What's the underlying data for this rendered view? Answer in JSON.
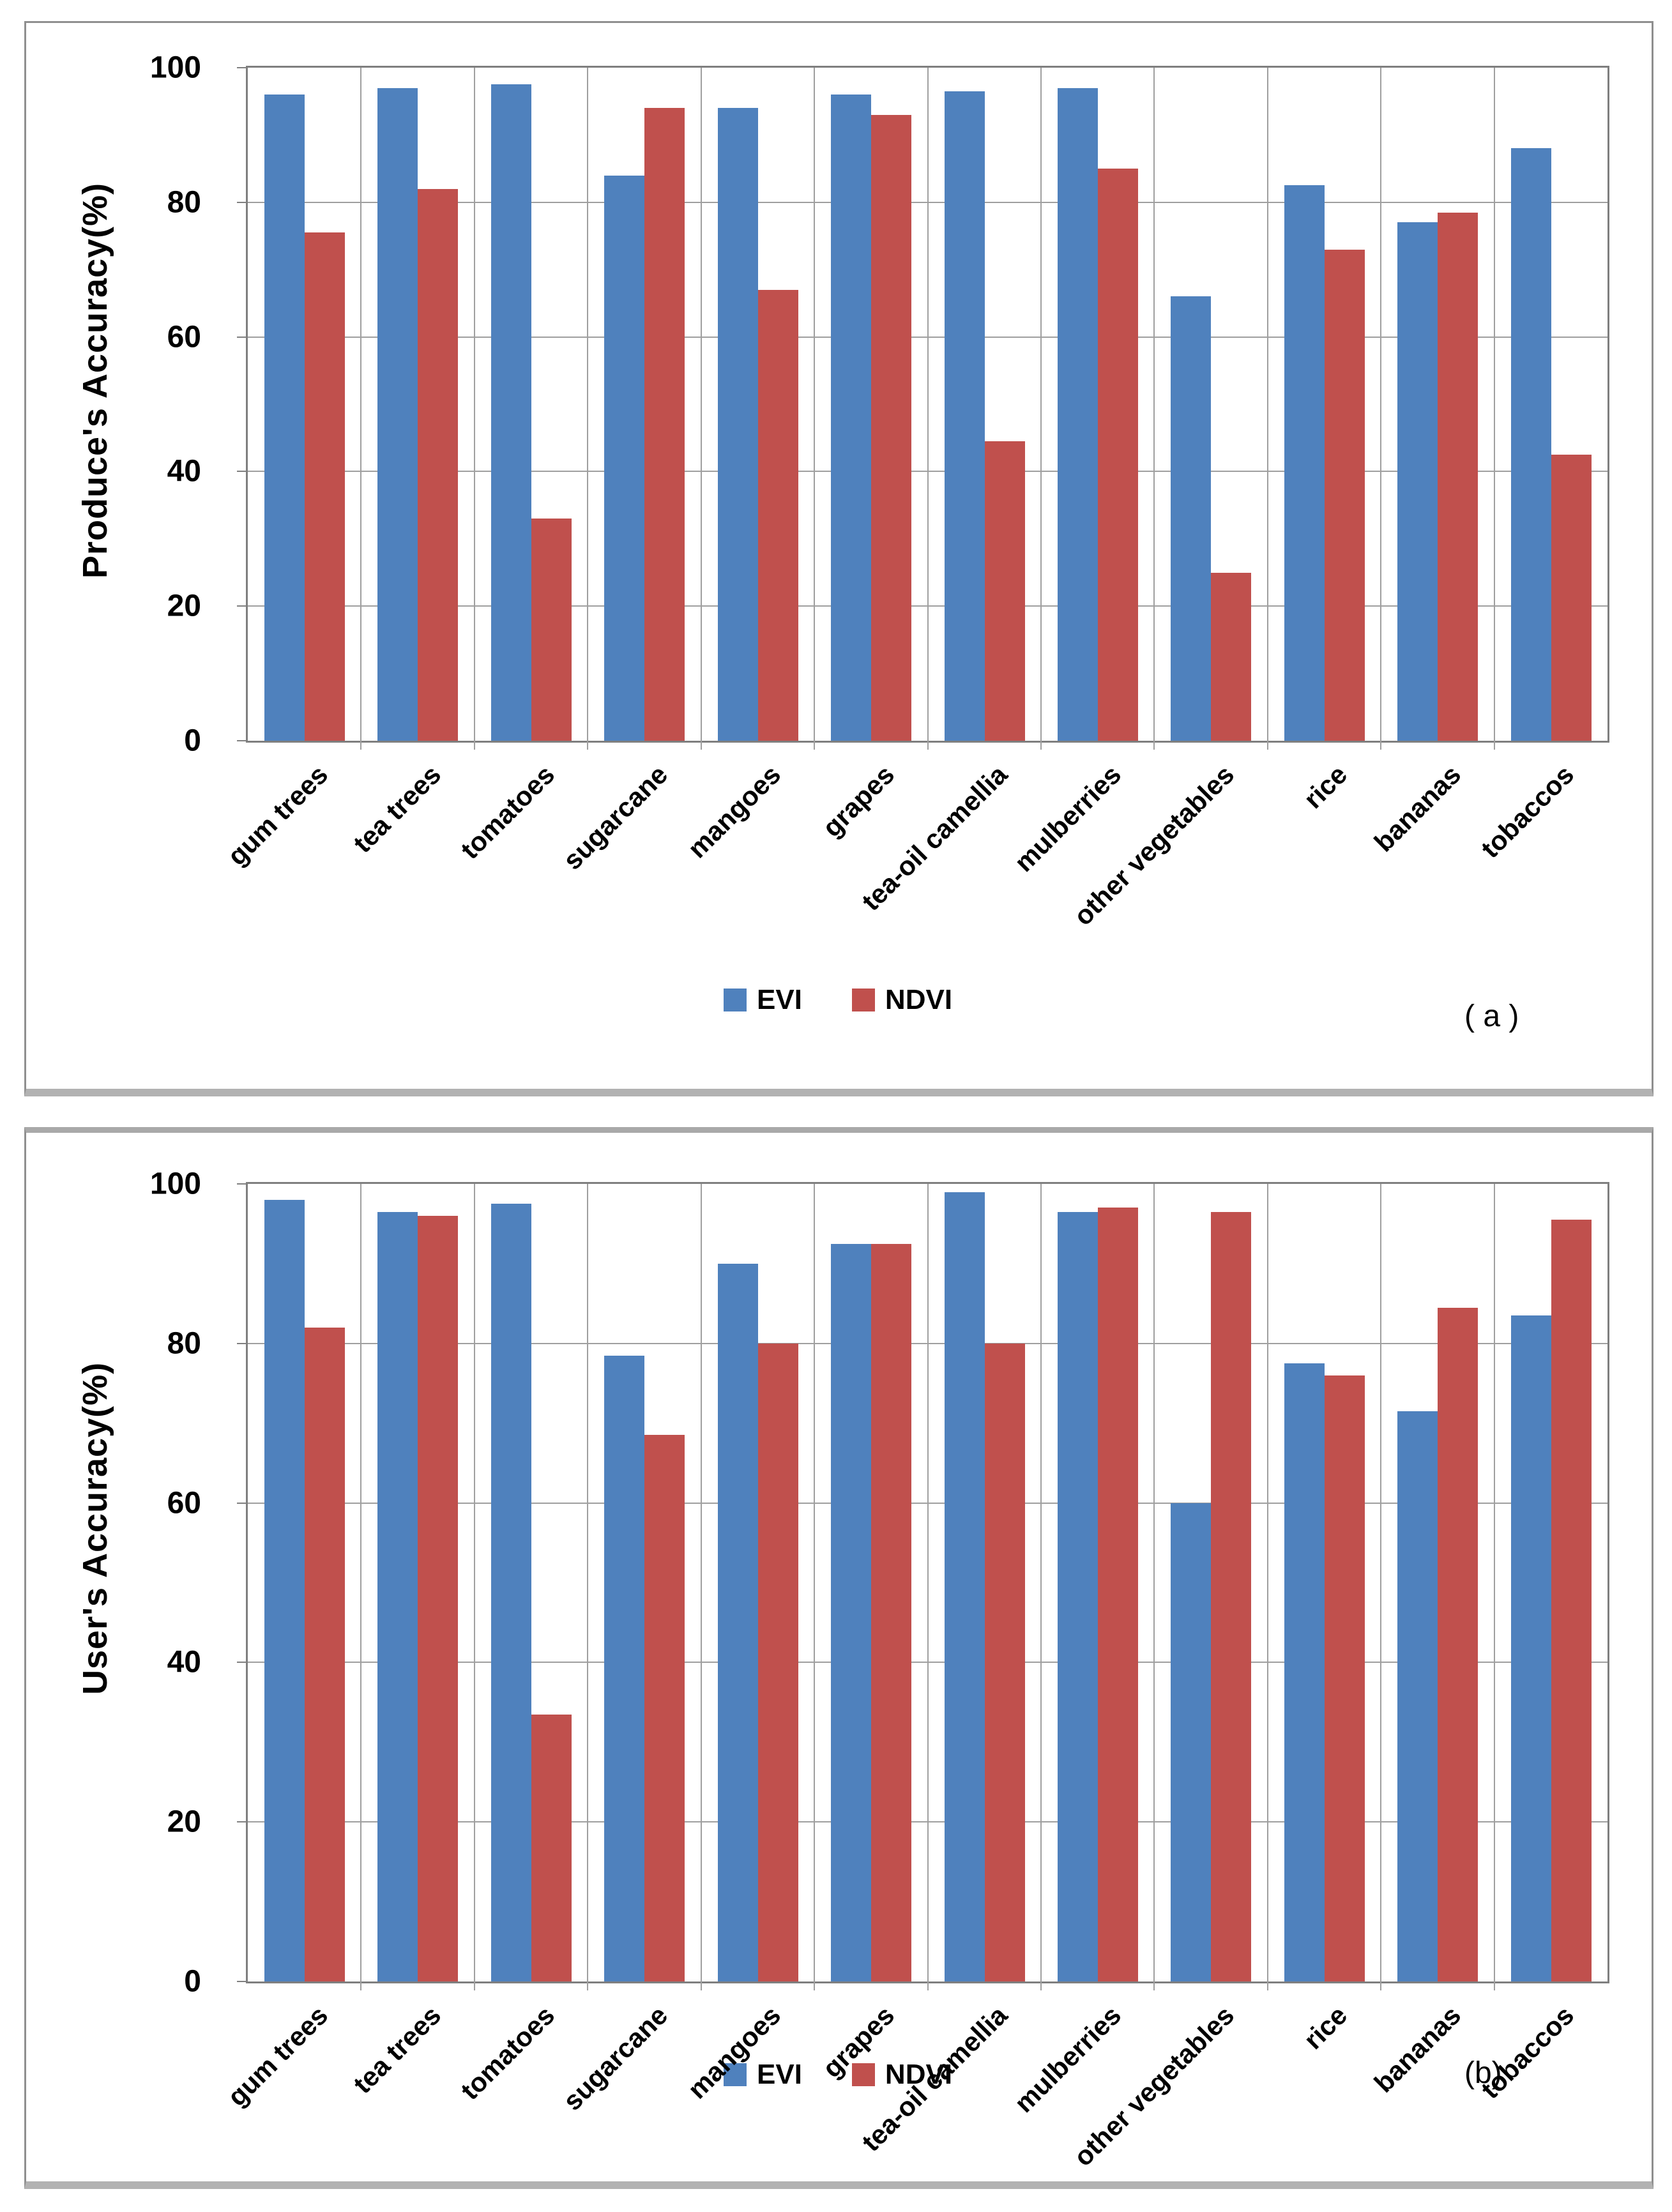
{
  "page": {
    "background": "#ffffff"
  },
  "colors": {
    "evi": "#4F81BD",
    "ndvi": "#C0504D",
    "gridline": "#9f9f9f",
    "plot_border": "#7f7f7f",
    "box_border": "#8f8f8f",
    "text": "#000000"
  },
  "legend": {
    "evi_label": "EVI",
    "ndvi_label": "NDVI"
  },
  "chart_data": [
    {
      "type": "bar",
      "title": "",
      "caption": "( a )",
      "xlabel": "",
      "ylabel": "Produce's Accuracy(%)",
      "ylim": [
        0,
        100
      ],
      "yticks": [
        0,
        20,
        40,
        60,
        80,
        100
      ],
      "grid": "horizontal and vertical gridlines on",
      "legend_position": "bottom-center",
      "categories": [
        "gum trees",
        "tea trees",
        "tomatoes",
        "sugarcane",
        "mangoes",
        "grapes",
        "tea-oil camellia",
        "mulberries",
        "other vegetables",
        "rice",
        "bananas",
        "tobaccos"
      ],
      "series": [
        {
          "name": "EVI",
          "color": "#4F81BD",
          "values": [
            96,
            97,
            97.5,
            84,
            94,
            96,
            96.5,
            97,
            66,
            82.5,
            77,
            88
          ]
        },
        {
          "name": "NDVI",
          "color": "#C0504D",
          "values": [
            75.5,
            82,
            33,
            94,
            67,
            93,
            44.5,
            85,
            25,
            73,
            78.5,
            42.5
          ]
        }
      ]
    },
    {
      "type": "bar",
      "title": "",
      "caption": "(b)",
      "xlabel": "",
      "ylabel": "User's Accuracy(%)",
      "ylim": [
        0,
        100
      ],
      "yticks": [
        0,
        20,
        40,
        60,
        80,
        100
      ],
      "grid": "horizontal and vertical gridlines on",
      "legend_position": "bottom-center",
      "categories": [
        "gum trees",
        "tea trees",
        "tomatoes",
        "sugarcane",
        "mangoes",
        "grapes",
        "tea-oil camellia",
        "mulberries",
        "other vegetables",
        "rice",
        "bananas",
        "tobaccos"
      ],
      "series": [
        {
          "name": "EVI",
          "color": "#4F81BD",
          "values": [
            98,
            96.5,
            97.5,
            78.5,
            90,
            92.5,
            99,
            96.5,
            60,
            77.5,
            71.5,
            83.5
          ]
        },
        {
          "name": "NDVI",
          "color": "#C0504D",
          "values": [
            82,
            96,
            33.5,
            68.5,
            80,
            92.5,
            80,
            97,
            96.5,
            76,
            84.5,
            95.5
          ]
        }
      ]
    }
  ]
}
